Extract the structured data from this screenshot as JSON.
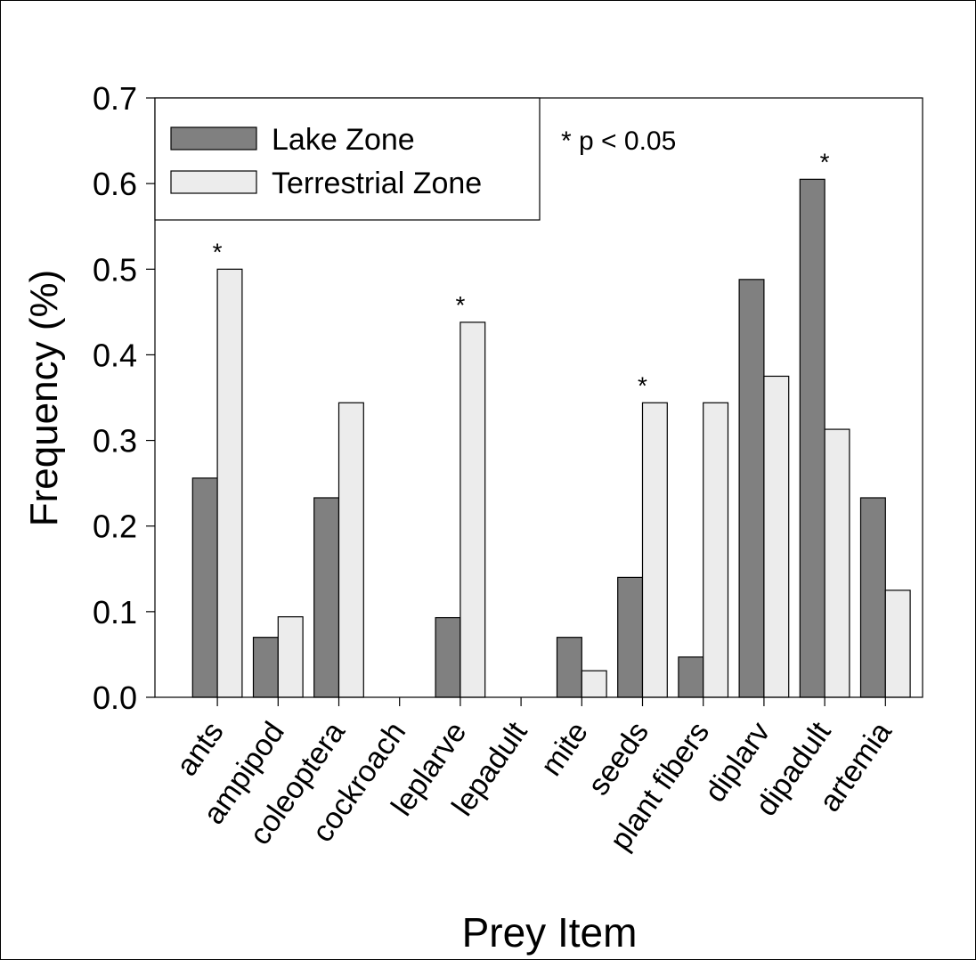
{
  "chart_data": {
    "type": "bar",
    "xlabel": "Prey Item",
    "ylabel": "Frequency (%)",
    "ylim": [
      0,
      0.7
    ],
    "yticks": [
      "0.0",
      "0.1",
      "0.2",
      "0.3",
      "0.4",
      "0.5",
      "0.6",
      "0.7"
    ],
    "grid": false,
    "legend_position": "top-left",
    "categories": [
      "ants",
      "ampipod",
      "coleoptera",
      "cockroach",
      "leplarve",
      "lepadult",
      "mite",
      "seeds",
      "plant fibers",
      "diplarv",
      "dipadult",
      "artemia"
    ],
    "series": [
      {
        "name": "Lake Zone",
        "color": "#808080",
        "values": [
          0.256,
          0.07,
          0.233,
          0,
          0.093,
          0,
          0.07,
          0.14,
          0.047,
          0.488,
          0.605,
          0.233
        ]
      },
      {
        "name": "Terrestrial Zone",
        "color": "#ececec",
        "values": [
          0.5,
          0.094,
          0.344,
          0,
          0.438,
          0,
          0.031,
          0.344,
          0.344,
          0.375,
          0.313,
          0.125
        ]
      }
    ],
    "significance_marker": "*",
    "significant_categories": [
      "ants",
      "leplarve",
      "seeds",
      "dipadult"
    ],
    "annotation": "* p < 0.05"
  }
}
